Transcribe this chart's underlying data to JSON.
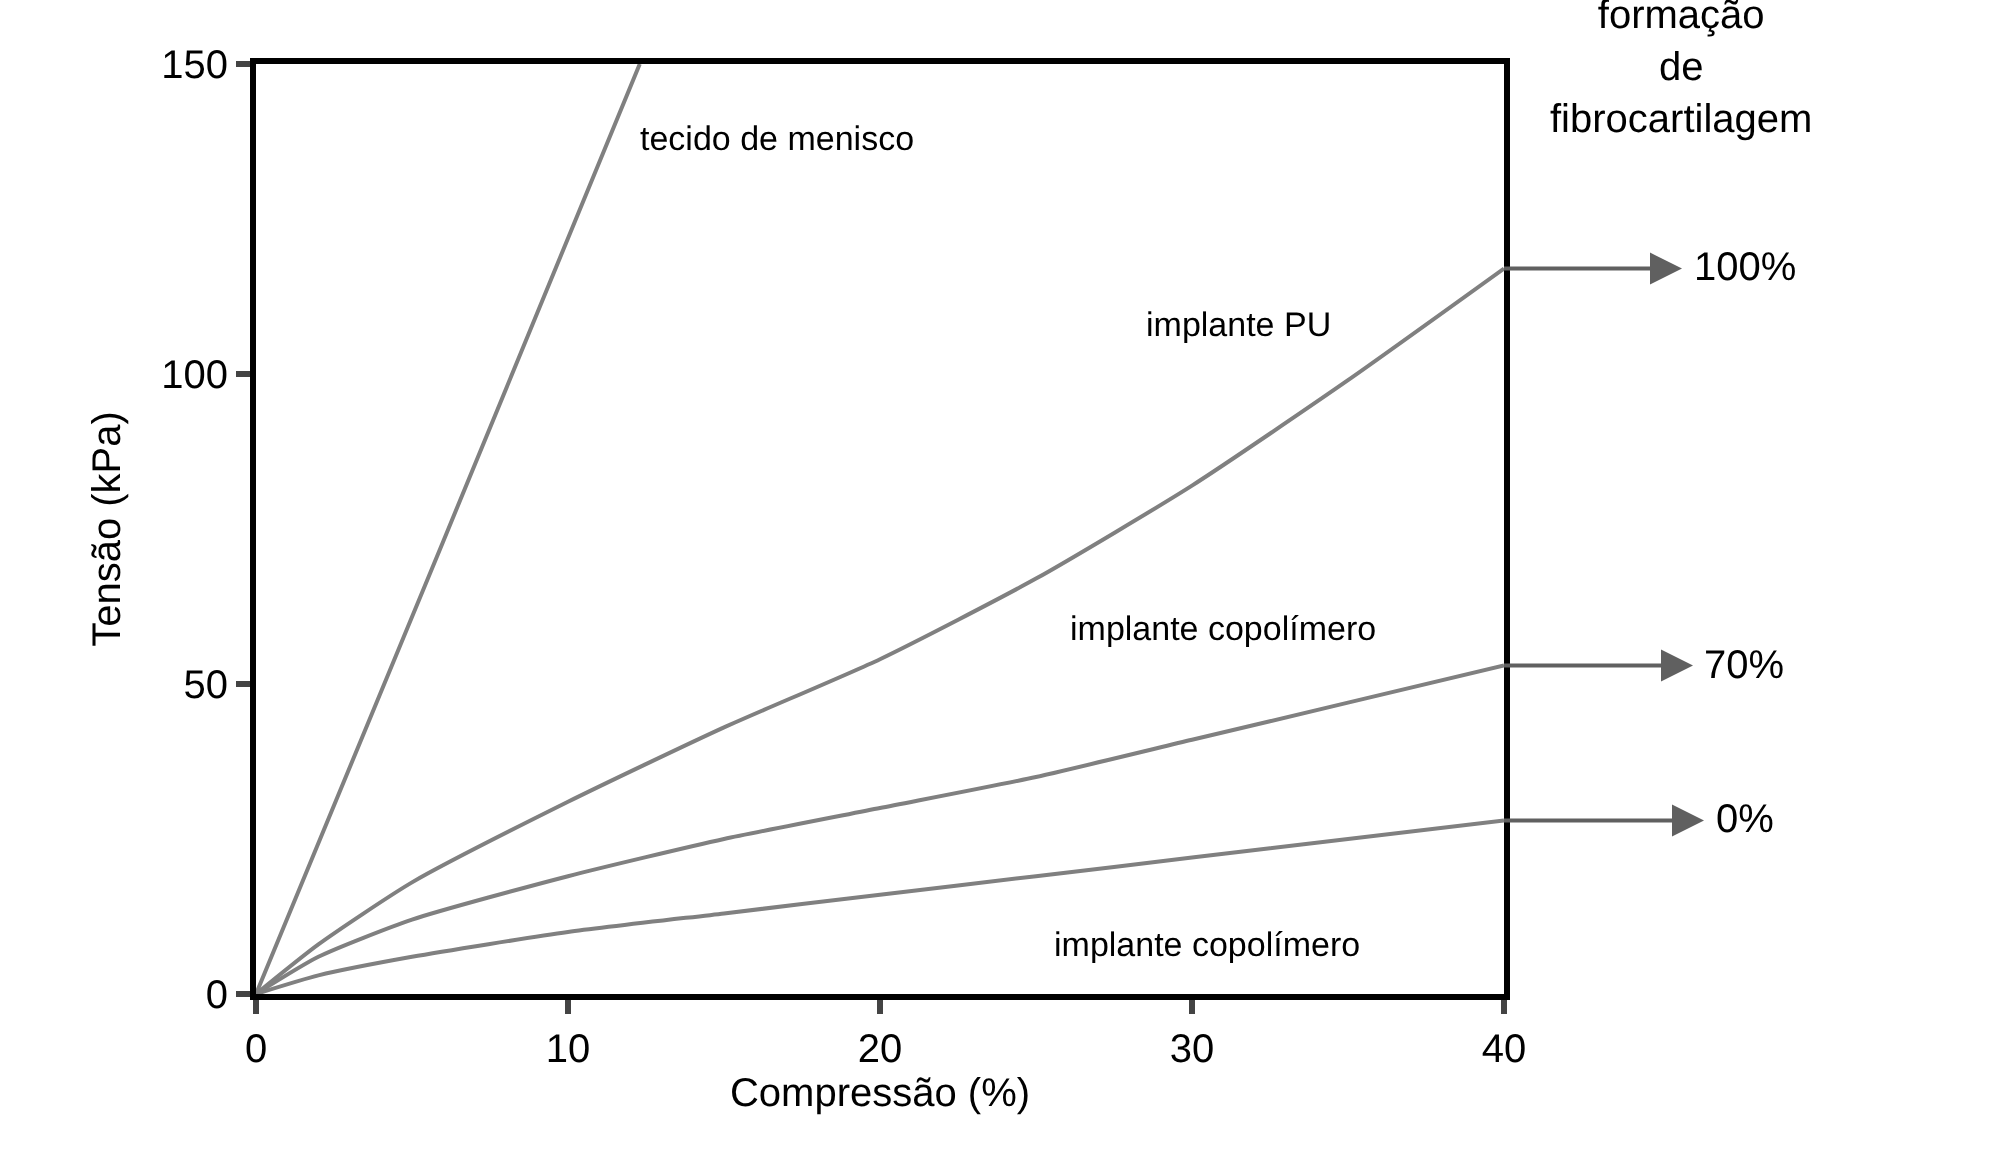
{
  "chart_data": {
    "type": "line",
    "xlabel": "Compressão (%)",
    "ylabel": "Tensão (kPa)",
    "xlim": [
      0,
      40
    ],
    "xticks": [
      0,
      10,
      20,
      30,
      40
    ],
    "ylim": [
      0,
      150
    ],
    "yticks": [
      0,
      50,
      100,
      150
    ],
    "grid": false,
    "legend": false,
    "marker": "none",
    "line_style": "solid",
    "series": [
      {
        "name": "tecido de menisco",
        "color": "#808080",
        "x": [
          0,
          6,
          12.3
        ],
        "values": [
          0,
          73,
          150
        ]
      },
      {
        "name": "implante PU",
        "color": "#808080",
        "x": [
          0,
          2,
          5,
          10,
          15,
          20,
          25,
          30,
          35,
          40
        ],
        "values": [
          0,
          8,
          18,
          31,
          43,
          54,
          67,
          82,
          99,
          117
        ]
      },
      {
        "name": "implante copolímero",
        "color": "#808080",
        "x": [
          0,
          2,
          5,
          10,
          15,
          20,
          25,
          30,
          35,
          40
        ],
        "values": [
          0,
          6,
          12,
          19,
          25,
          30,
          35,
          41,
          47,
          53
        ]
      },
      {
        "name": "implante copolímero",
        "color": "#808080",
        "x": [
          0,
          2,
          5,
          10,
          15,
          20,
          25,
          30,
          35,
          40
        ],
        "values": [
          0,
          3,
          6,
          10,
          13,
          16,
          19,
          22,
          25,
          28
        ]
      }
    ],
    "annotations": [
      "formação\nde\nfibrocartilagem",
      "100%",
      "70%",
      "0%"
    ]
  }
}
